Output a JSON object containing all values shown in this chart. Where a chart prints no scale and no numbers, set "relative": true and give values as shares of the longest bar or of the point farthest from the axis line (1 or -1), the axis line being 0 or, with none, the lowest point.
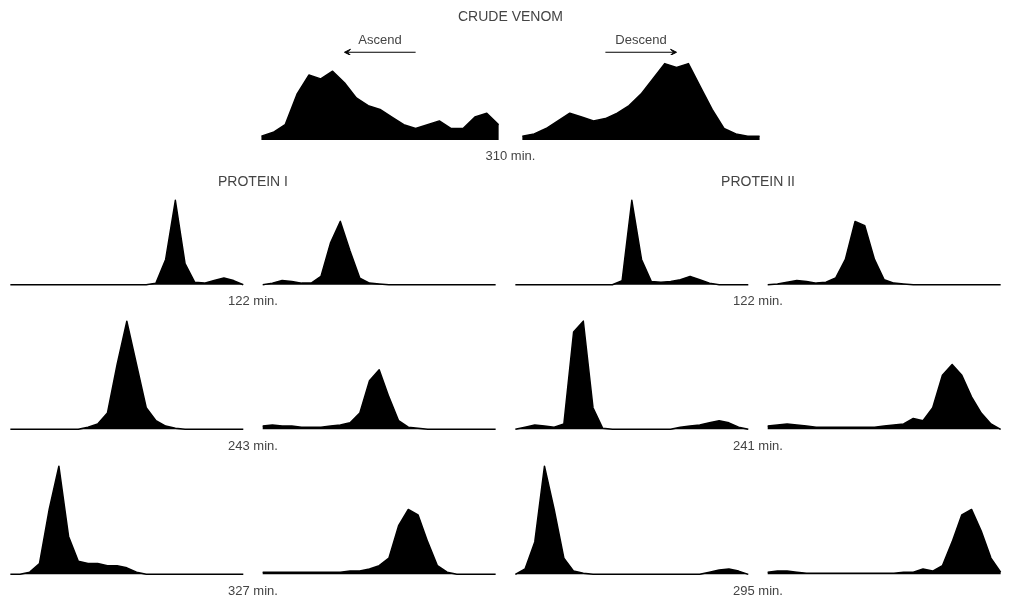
{
  "chart_data": [
    {
      "type": "area",
      "relative": true,
      "title": "CRUDE VENOM",
      "xlabel": "310 min.",
      "annotations": [
        "Ascend",
        "Descend"
      ],
      "categories": [
        null,
        null,
        null,
        null,
        null,
        null,
        null,
        null,
        null,
        null,
        null,
        null,
        null,
        null,
        null,
        null,
        null,
        null,
        null,
        null,
        null,
        null,
        null,
        null,
        null,
        null,
        null,
        null,
        null,
        null,
        null,
        null,
        null,
        null,
        null,
        null,
        null,
        null,
        null,
        null,
        null,
        null,
        null
      ],
      "series": [
        {
          "color": "#000000",
          "values": [
            0.05,
            0.1,
            0.2,
            0.6,
            0.85,
            0.8,
            0.9,
            0.75,
            0.55,
            0.45,
            0.4,
            0.3,
            0.2,
            0.15,
            0.2,
            0.25,
            0.15,
            0.15,
            0.3,
            0.35,
            0.2,
            null,
            null,
            null,
            null,
            null,
            null,
            null,
            null,
            null,
            null,
            null,
            null,
            null,
            null,
            null,
            null,
            null,
            null,
            null,
            null,
            null,
            null
          ]
        },
        {
          "color": "#000000",
          "values": [
            null,
            null,
            null,
            null,
            null,
            null,
            null,
            null,
            null,
            null,
            null,
            null,
            null,
            null,
            null,
            null,
            null,
            null,
            null,
            null,
            null,
            null,
            0.05,
            0.08,
            0.15,
            0.25,
            0.35,
            0.3,
            0.25,
            0.28,
            0.35,
            0.45,
            0.6,
            0.8,
            1,
            0.95,
            1,
            0.7,
            0.4,
            0.15,
            0.08,
            0.05,
            0.05
          ]
        }
      ]
    },
    {
      "type": "area",
      "relative": true,
      "title": "PROTEIN I",
      "xlabel": "122 min.",
      "categories": [
        null,
        null,
        null,
        null,
        null,
        null,
        null,
        null,
        null,
        null,
        null,
        null,
        null,
        null,
        null,
        null,
        null,
        null,
        null,
        null,
        null,
        null,
        null,
        null,
        null,
        null,
        null,
        null,
        null,
        null,
        null,
        null,
        null,
        null,
        null,
        null,
        null,
        null,
        null,
        null,
        null,
        null,
        null,
        null,
        null,
        null,
        null,
        null,
        null,
        null,
        null
      ],
      "series": [
        {
          "color": "#000000",
          "values": [
            0,
            0,
            0,
            0,
            0,
            0,
            0,
            0,
            0,
            0,
            0,
            0,
            0,
            0,
            0,
            0.02,
            0.3,
            1,
            0.25,
            0.03,
            0.02,
            0.05,
            0.08,
            0.05,
            0,
            null,
            null,
            null,
            null,
            null,
            null,
            null,
            null,
            null,
            null,
            null,
            null,
            null,
            null,
            null,
            null,
            null,
            null,
            null,
            null,
            null,
            null,
            null,
            null,
            null,
            null
          ]
        },
        {
          "color": "#000000",
          "values": [
            null,
            null,
            null,
            null,
            null,
            null,
            null,
            null,
            null,
            null,
            null,
            null,
            null,
            null,
            null,
            null,
            null,
            null,
            null,
            null,
            null,
            null,
            null,
            null,
            null,
            null,
            0,
            0.02,
            0.05,
            0.04,
            0.02,
            0.02,
            0.1,
            0.5,
            0.75,
            0.4,
            0.08,
            0.02,
            0.01,
            0,
            0,
            0,
            0,
            0,
            0,
            0,
            0,
            0,
            0,
            0,
            0
          ]
        }
      ]
    },
    {
      "type": "area",
      "relative": true,
      "xlabel": "243 min.",
      "categories": [
        null,
        null,
        null,
        null,
        null,
        null,
        null,
        null,
        null,
        null,
        null,
        null,
        null,
        null,
        null,
        null,
        null,
        null,
        null,
        null,
        null,
        null,
        null,
        null,
        null,
        null,
        null,
        null,
        null,
        null,
        null,
        null,
        null,
        null,
        null,
        null,
        null,
        null,
        null,
        null,
        null,
        null,
        null,
        null,
        null,
        null,
        null,
        null,
        null,
        null,
        null
      ],
      "series": [
        {
          "color": "#000000",
          "values": [
            0,
            0,
            0,
            0,
            0,
            0,
            0,
            0,
            0.02,
            0.05,
            0.15,
            0.6,
            1,
            0.6,
            0.2,
            0.08,
            0.03,
            0.01,
            0,
            0,
            0,
            0,
            0,
            0,
            0,
            null,
            null,
            null,
            null,
            null,
            null,
            null,
            null,
            null,
            null,
            null,
            null,
            null,
            null,
            null,
            null,
            null,
            null,
            null,
            null,
            null,
            null,
            null,
            null,
            null,
            null
          ]
        },
        {
          "color": "#000000",
          "values": [
            null,
            null,
            null,
            null,
            null,
            null,
            null,
            null,
            null,
            null,
            null,
            null,
            null,
            null,
            null,
            null,
            null,
            null,
            null,
            null,
            null,
            null,
            null,
            null,
            null,
            null,
            0.03,
            0.04,
            0.03,
            0.03,
            0.02,
            0.02,
            0.02,
            0.03,
            0.04,
            0.06,
            0.15,
            0.45,
            0.55,
            0.3,
            0.08,
            0.02,
            0.01,
            0,
            0,
            0,
            0,
            0,
            0,
            0,
            0
          ]
        }
      ]
    },
    {
      "type": "area",
      "relative": true,
      "xlabel": "327 min.",
      "categories": [
        null,
        null,
        null,
        null,
        null,
        null,
        null,
        null,
        null,
        null,
        null,
        null,
        null,
        null,
        null,
        null,
        null,
        null,
        null,
        null,
        null,
        null,
        null,
        null,
        null,
        null,
        null,
        null,
        null,
        null,
        null,
        null,
        null,
        null,
        null,
        null,
        null,
        null,
        null,
        null,
        null,
        null,
        null,
        null,
        null,
        null,
        null,
        null,
        null,
        null,
        null
      ],
      "series": [
        {
          "color": "#000000",
          "values": [
            0,
            0,
            0.02,
            0.1,
            0.6,
            1,
            0.35,
            0.12,
            0.1,
            0.1,
            0.08,
            0.08,
            0.06,
            0.02,
            0,
            0,
            0,
            0,
            0,
            0,
            0,
            0,
            0,
            0,
            0,
            null,
            null,
            null,
            null,
            null,
            null,
            null,
            null,
            null,
            null,
            null,
            null,
            null,
            null,
            null,
            null,
            null,
            null,
            null,
            null,
            null,
            null,
            null,
            null,
            null,
            null
          ]
        },
        {
          "color": "#000000",
          "values": [
            null,
            null,
            null,
            null,
            null,
            null,
            null,
            null,
            null,
            null,
            null,
            null,
            null,
            null,
            null,
            null,
            null,
            null,
            null,
            null,
            null,
            null,
            null,
            null,
            null,
            null,
            0.02,
            0.02,
            0.02,
            0.02,
            0.02,
            0.02,
            0.02,
            0.02,
            0.02,
            0.03,
            0.03,
            0.05,
            0.08,
            0.15,
            0.45,
            0.6,
            0.55,
            0.3,
            0.08,
            0.02,
            0,
            0,
            0,
            0,
            0
          ]
        }
      ]
    },
    {
      "type": "area",
      "relative": true,
      "title": "PROTEIN II",
      "xlabel": "122 min.",
      "categories": [
        null,
        null,
        null,
        null,
        null,
        null,
        null,
        null,
        null,
        null,
        null,
        null,
        null,
        null,
        null,
        null,
        null,
        null,
        null,
        null,
        null,
        null,
        null,
        null,
        null,
        null,
        null,
        null,
        null,
        null,
        null,
        null,
        null,
        null,
        null,
        null,
        null,
        null,
        null,
        null,
        null,
        null,
        null,
        null,
        null,
        null,
        null,
        null,
        null,
        null,
        null
      ],
      "series": [
        {
          "color": "#000000",
          "values": [
            0,
            0,
            0,
            0,
            0,
            0,
            0,
            0,
            0,
            0,
            0,
            0.05,
            1,
            0.3,
            0.04,
            0.03,
            0.04,
            0.06,
            0.1,
            0.06,
            0.02,
            0,
            0,
            0,
            0,
            null,
            null,
            null,
            null,
            null,
            null,
            null,
            null,
            null,
            null,
            null,
            null,
            null,
            null,
            null,
            null,
            null,
            null,
            null,
            null,
            null,
            null,
            null,
            null,
            null,
            null
          ]
        },
        {
          "color": "#000000",
          "values": [
            null,
            null,
            null,
            null,
            null,
            null,
            null,
            null,
            null,
            null,
            null,
            null,
            null,
            null,
            null,
            null,
            null,
            null,
            null,
            null,
            null,
            null,
            null,
            null,
            null,
            null,
            0,
            0.01,
            0.03,
            0.05,
            0.04,
            0.02,
            0.03,
            0.08,
            0.3,
            0.75,
            0.7,
            0.3,
            0.06,
            0.02,
            0.01,
            0,
            0,
            0,
            0,
            0,
            0,
            0,
            0,
            0,
            0
          ]
        }
      ]
    },
    {
      "type": "area",
      "relative": true,
      "xlabel": "241 min.",
      "categories": [
        null,
        null,
        null,
        null,
        null,
        null,
        null,
        null,
        null,
        null,
        null,
        null,
        null,
        null,
        null,
        null,
        null,
        null,
        null,
        null,
        null,
        null,
        null,
        null,
        null,
        null,
        null,
        null,
        null,
        null,
        null,
        null,
        null,
        null,
        null,
        null,
        null,
        null,
        null,
        null,
        null,
        null,
        null,
        null,
        null,
        null,
        null,
        null,
        null,
        null,
        null
      ],
      "series": [
        {
          "color": "#000000",
          "values": [
            0,
            0.02,
            0.04,
            0.03,
            0.02,
            0.05,
            0.9,
            1,
            0.2,
            0.01,
            0,
            0,
            0,
            0,
            0,
            0,
            0,
            0.02,
            0.03,
            0.04,
            0.06,
            0.08,
            0.06,
            0.02,
            0,
            null,
            null,
            null,
            null,
            null,
            null,
            null,
            null,
            null,
            null,
            null,
            null,
            null,
            null,
            null,
            null,
            null,
            null,
            null,
            null,
            null,
            null,
            null,
            null,
            null,
            null
          ]
        },
        {
          "color": "#000000",
          "values": [
            null,
            null,
            null,
            null,
            null,
            null,
            null,
            null,
            null,
            null,
            null,
            null,
            null,
            null,
            null,
            null,
            null,
            null,
            null,
            null,
            null,
            null,
            null,
            null,
            null,
            null,
            0.03,
            0.04,
            0.05,
            0.04,
            0.03,
            0.02,
            0.02,
            0.02,
            0.02,
            0.02,
            0.02,
            0.02,
            0.03,
            0.04,
            0.05,
            0.1,
            0.08,
            0.2,
            0.5,
            0.6,
            0.5,
            0.3,
            0.15,
            0.05,
            0
          ]
        }
      ]
    },
    {
      "type": "area",
      "relative": true,
      "xlabel": "295 min.",
      "categories": [
        null,
        null,
        null,
        null,
        null,
        null,
        null,
        null,
        null,
        null,
        null,
        null,
        null,
        null,
        null,
        null,
        null,
        null,
        null,
        null,
        null,
        null,
        null,
        null,
        null,
        null,
        null,
        null,
        null,
        null,
        null,
        null,
        null,
        null,
        null,
        null,
        null,
        null,
        null,
        null,
        null,
        null,
        null,
        null,
        null,
        null,
        null,
        null,
        null,
        null,
        null
      ],
      "series": [
        {
          "color": "#000000",
          "values": [
            0,
            0.05,
            0.3,
            1,
            0.6,
            0.15,
            0.03,
            0.01,
            0,
            0,
            0,
            0,
            0,
            0,
            0,
            0,
            0,
            0,
            0,
            0,
            0.02,
            0.04,
            0.05,
            0.03,
            0,
            null,
            null,
            null,
            null,
            null,
            null,
            null,
            null,
            null,
            null,
            null,
            null,
            null,
            null,
            null,
            null,
            null,
            null,
            null,
            null,
            null,
            null,
            null,
            null,
            null,
            null
          ]
        },
        {
          "color": "#000000",
          "values": [
            null,
            null,
            null,
            null,
            null,
            null,
            null,
            null,
            null,
            null,
            null,
            null,
            null,
            null,
            null,
            null,
            null,
            null,
            null,
            null,
            null,
            null,
            null,
            null,
            null,
            null,
            0.02,
            0.03,
            0.03,
            0.02,
            0.01,
            0.01,
            0.01,
            0.01,
            0.01,
            0.01,
            0.01,
            0.01,
            0.01,
            0.01,
            0.02,
            0.02,
            0.05,
            0.03,
            0.08,
            0.3,
            0.55,
            0.6,
            0.4,
            0.15,
            0.02
          ]
        }
      ]
    }
  ]
}
